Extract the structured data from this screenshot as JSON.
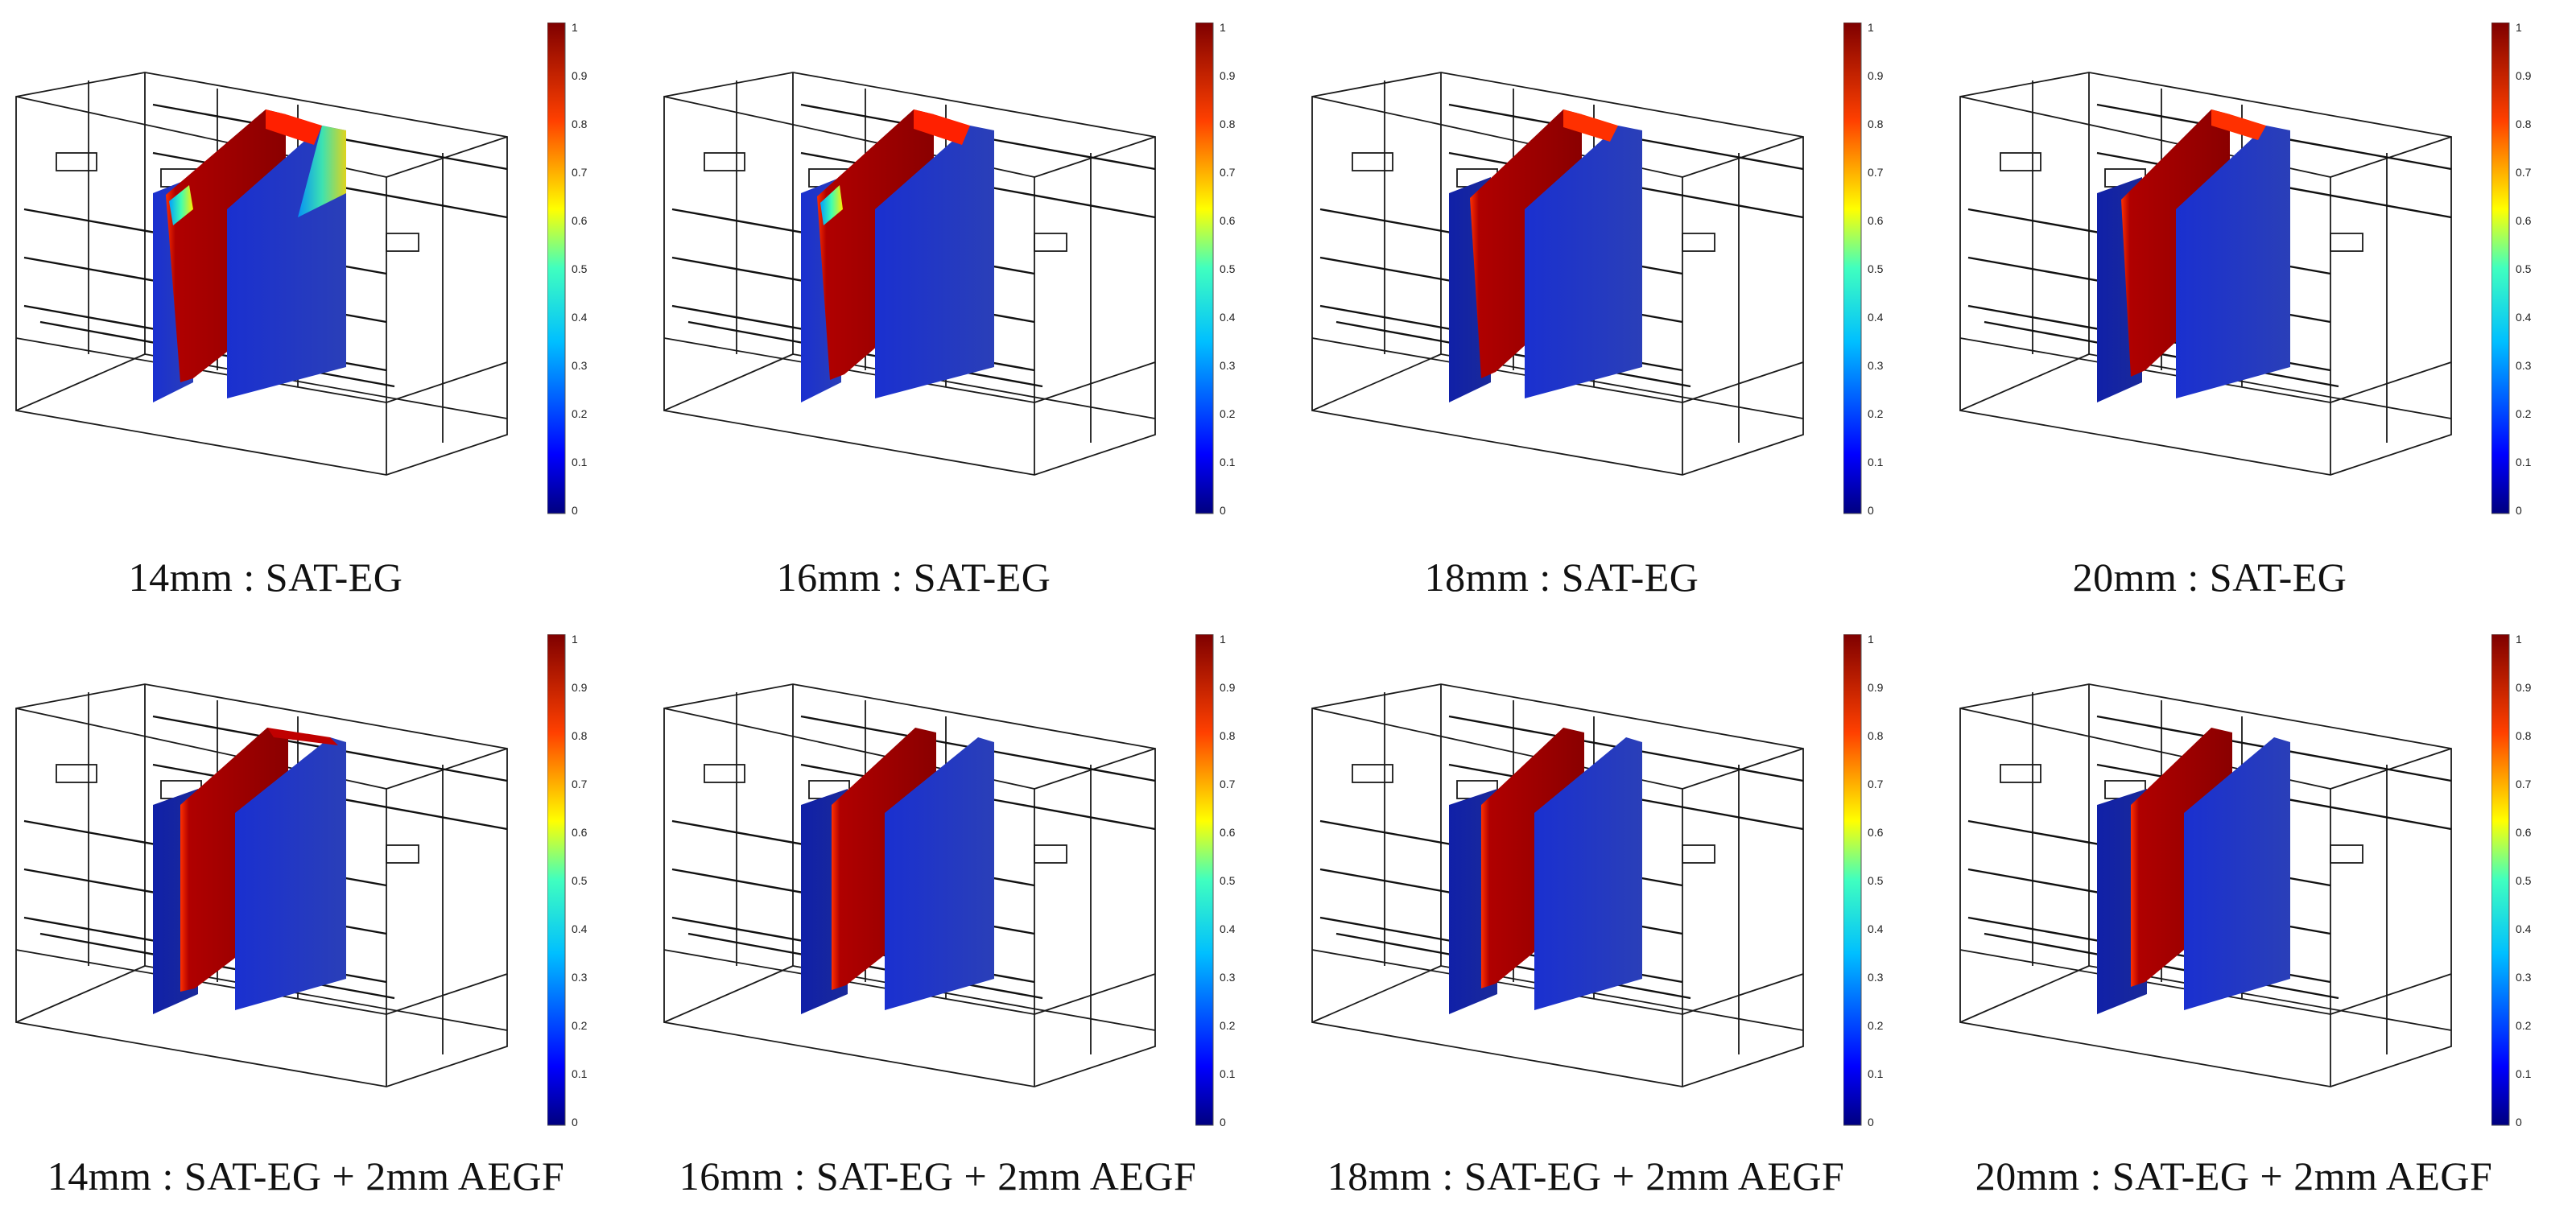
{
  "colorbar": {
    "ticks": [
      "1",
      "0.9",
      "0.8",
      "0.7",
      "0.6",
      "0.5",
      "0.4",
      "0.3",
      "0.2",
      "0.1",
      "0"
    ],
    "colors": [
      "#00007f",
      "#0000ff",
      "#007fff",
      "#00ffff",
      "#7fff7f",
      "#ffff00",
      "#ff7f00",
      "#ff0000",
      "#7f0000"
    ]
  },
  "rows": [
    {
      "panels": [
        {
          "caption": "14mm : SAT-EG"
        },
        {
          "caption": "16mm : SAT-EG"
        },
        {
          "caption": "18mm : SAT-EG"
        },
        {
          "caption": "20mm : SAT-EG"
        }
      ]
    },
    {
      "panels": [
        {
          "caption": "14mm : SAT-EG + 2mm AEGF"
        },
        {
          "caption": "16mm : SAT-EG + 2mm AEGF"
        },
        {
          "caption": "18mm : SAT-EG + 2mm AEGF"
        },
        {
          "caption": "20mm : SAT-EG + 2mm AEGF"
        }
      ]
    }
  ]
}
